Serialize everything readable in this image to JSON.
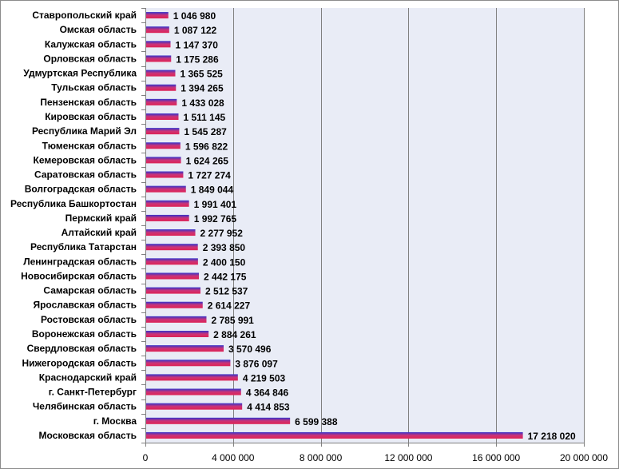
{
  "chart_data": {
    "type": "bar",
    "orientation": "horizontal",
    "categories": [
      "Ставропольский край",
      "Омская область",
      "Калужская область",
      "Орловская область",
      "Удмуртская Республика",
      "Тульская область",
      "Пензенская область",
      "Кировская область",
      "Республика Марий Эл",
      "Тюменская область",
      "Кемеровская область",
      "Саратовская область",
      "Волгоградская область",
      "Республика Башкортостан",
      "Пермский край",
      "Алтайский край",
      "Республика Татарстан",
      "Ленинградская область",
      "Новосибирская область",
      "Самарская область",
      "Ярославская область",
      "Ростовская область",
      "Воронежская область",
      "Свердловская область",
      "Нижегородская область",
      "Краснодарский край",
      "г. Санкт-Петербург",
      "Челябинская область",
      "г. Москва",
      "Московская область"
    ],
    "values": [
      1046980,
      1087122,
      1147370,
      1175286,
      1365525,
      1394265,
      1433028,
      1511145,
      1545287,
      1596822,
      1624265,
      1727274,
      1849044,
      1991401,
      1992765,
      2277952,
      2393850,
      2400150,
      2442175,
      2512537,
      2614227,
      2785991,
      2884261,
      3570496,
      3876097,
      4219503,
      4364846,
      4414853,
      6599388,
      17218020
    ],
    "data_labels": [
      "1 046 980",
      "1 087 122",
      "1 147 370",
      "1 175 286",
      "1 365 525",
      "1 394 265",
      "1 433 028",
      "1 511 145",
      "1 545 287",
      "1 596 822",
      "1 624 265",
      "1 727 274",
      "1 849 044",
      "1 991 401",
      "1 992 765",
      "2 277 952",
      "2 393 850",
      "2 400 150",
      "2 442 175",
      "2 512 537",
      "2 614 227",
      "2 785 991",
      "2 884 261",
      "3 570 496",
      "3 876 097",
      "4 219 503",
      "4 364 846",
      "4 414 853",
      "6 599 388",
      "17 218 020"
    ],
    "title": "",
    "xlabel": "",
    "ylabel": "",
    "xlim": [
      0,
      20000000
    ],
    "x_ticks": [
      0,
      4000000,
      8000000,
      12000000,
      16000000,
      20000000
    ],
    "x_tick_labels": [
      "0",
      "4 000 000",
      "8 000 000",
      "12 000 000",
      "16 000 000",
      "20 000 000"
    ],
    "grid": "vertical",
    "legend": "none",
    "colors": {
      "bar_top": "#3333cc",
      "bar_mid": "#cc3377",
      "bar_bottom": "#dd2255",
      "plot_background": "#e9ecf6",
      "gridline": "#808080"
    }
  }
}
